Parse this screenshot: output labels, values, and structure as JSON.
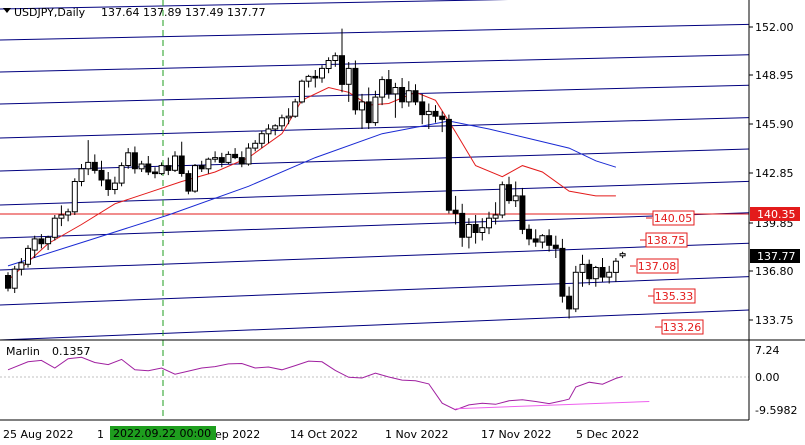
{
  "header": {
    "symbol_label": "USDJPY,Daily",
    "ohlc_values": "137.64 137.89 137.49 137.77"
  },
  "indicator": {
    "label": "Marlin",
    "value_label": "0.1357",
    "axis_ticks": [
      "7.24",
      "0.00",
      "-9.5982"
    ]
  },
  "price_axis": {
    "ticks": [
      "152.00",
      "148.95",
      "145.90",
      "142.85",
      "139.85",
      "136.80",
      "133.75"
    ],
    "current_price": "137.77"
  },
  "date_axis": {
    "labels": [
      "25 Aug 2022",
      "1",
      "ep 2022",
      "14 Oct 2022",
      "1 Nov 2022",
      "17 Nov 2022",
      "5 Dec 2022"
    ],
    "crosshair_label": "2022.09.22 00:00"
  },
  "level_labels": {
    "horizontal_line": "140.35",
    "target_1": "140.05",
    "target_2": "138.75",
    "target_3": "137.08",
    "target_4": "135.33",
    "target_5": "133.26"
  },
  "colors": {
    "background": "#ffffff",
    "bull_candle": "#ffffff",
    "bear_candle": "#000000",
    "channel_lines": "#00007f",
    "ma_fast": "#e31b1b",
    "ma_slow": "#1a2ad4",
    "horizontal_level": "#e31b1b",
    "target_labels": "#e31b1b",
    "crosshair": "#1e9e1e",
    "oscillator": "#a020a0",
    "divergence_line": "#ee60ee"
  },
  "chart_data": {
    "type": "candlestick",
    "symbol": "USDJPY",
    "timeframe": "Daily",
    "ylim": [
      132.7,
      153.1
    ],
    "x_labels": [
      "25 Aug 2022",
      "14 Oct 2022",
      "1 Nov 2022",
      "17 Nov 2022",
      "5 Dec 2022"
    ],
    "candles": [
      [
        136.4,
        136.6,
        135.4,
        135.6
      ],
      [
        135.6,
        137.0,
        135.3,
        136.8
      ],
      [
        136.8,
        137.5,
        136.4,
        137.2
      ],
      [
        137.1,
        138.3,
        136.9,
        138.1
      ],
      [
        138.0,
        138.9,
        137.5,
        138.7
      ],
      [
        138.7,
        139.0,
        138.1,
        138.4
      ],
      [
        138.4,
        138.9,
        138.0,
        138.8
      ],
      [
        138.8,
        140.2,
        138.6,
        140.0
      ],
      [
        140.0,
        140.8,
        139.5,
        140.2
      ],
      [
        140.2,
        140.6,
        139.8,
        140.4
      ],
      [
        140.4,
        142.5,
        140.2,
        142.3
      ],
      [
        142.3,
        143.4,
        142.0,
        143.1
      ],
      [
        143.1,
        144.9,
        142.7,
        143.5
      ],
      [
        143.5,
        144.0,
        142.8,
        143.0
      ],
      [
        143.0,
        143.6,
        142.0,
        142.4
      ],
      [
        142.4,
        142.9,
        141.4,
        141.8
      ],
      [
        141.8,
        142.6,
        141.5,
        142.2
      ],
      [
        142.2,
        143.5,
        142.0,
        143.3
      ],
      [
        143.3,
        144.4,
        143.1,
        144.1
      ],
      [
        144.1,
        144.5,
        142.8,
        143.1
      ],
      [
        143.1,
        143.6,
        142.9,
        143.4
      ],
      [
        143.4,
        143.9,
        142.7,
        142.9
      ],
      [
        142.9,
        143.2,
        142.5,
        142.8
      ],
      [
        142.8,
        143.5,
        142.7,
        143.3
      ],
      [
        143.3,
        143.8,
        142.7,
        143.0
      ],
      [
        143.0,
        144.2,
        142.9,
        143.9
      ],
      [
        143.9,
        144.8,
        142.6,
        142.8
      ],
      [
        142.8,
        143.0,
        141.5,
        141.7
      ],
      [
        141.7,
        143.4,
        141.6,
        143.3
      ],
      [
        143.3,
        143.6,
        142.9,
        143.1
      ],
      [
        143.1,
        143.8,
        142.8,
        143.7
      ],
      [
        143.7,
        144.2,
        143.5,
        143.8
      ],
      [
        143.8,
        144.1,
        143.2,
        143.5
      ],
      [
        143.5,
        144.2,
        143.4,
        144.0
      ],
      [
        144.0,
        144.4,
        143.7,
        143.8
      ],
      [
        143.8,
        144.2,
        143.2,
        143.4
      ],
      [
        143.4,
        144.7,
        143.3,
        144.4
      ],
      [
        144.4,
        144.9,
        144.2,
        144.7
      ],
      [
        144.7,
        145.5,
        144.4,
        145.3
      ],
      [
        145.3,
        145.9,
        144.7,
        145.6
      ],
      [
        145.6,
        145.9,
        145.2,
        145.8
      ],
      [
        145.8,
        146.5,
        145.5,
        146.3
      ],
      [
        146.3,
        146.9,
        145.9,
        146.4
      ],
      [
        146.4,
        147.5,
        146.3,
        147.3
      ],
      [
        147.3,
        148.7,
        147.2,
        148.6
      ],
      [
        148.6,
        149.0,
        148.2,
        148.9
      ],
      [
        148.9,
        149.3,
        148.2,
        148.8
      ],
      [
        148.8,
        149.6,
        148.5,
        149.4
      ],
      [
        149.4,
        150.1,
        149.1,
        149.9
      ],
      [
        149.9,
        150.4,
        149.5,
        150.2
      ],
      [
        150.2,
        151.9,
        147.9,
        148.4
      ],
      [
        148.4,
        149.8,
        147.3,
        149.4
      ],
      [
        149.4,
        149.9,
        146.5,
        146.8
      ],
      [
        146.8,
        147.8,
        145.6,
        147.3
      ],
      [
        147.3,
        148.2,
        145.6,
        146.0
      ],
      [
        146.0,
        148.0,
        145.8,
        147.6
      ],
      [
        147.6,
        148.9,
        147.1,
        148.7
      ],
      [
        148.7,
        149.3,
        147.5,
        147.8
      ],
      [
        147.8,
        148.5,
        146.3,
        148.2
      ],
      [
        148.2,
        148.8,
        146.9,
        147.3
      ],
      [
        147.3,
        148.6,
        147.0,
        148.0
      ],
      [
        148.0,
        148.4,
        147.1,
        147.3
      ],
      [
        147.3,
        147.8,
        145.9,
        146.5
      ],
      [
        146.5,
        147.2,
        145.6,
        146.7
      ],
      [
        146.7,
        147.1,
        146.0,
        146.4
      ],
      [
        146.4,
        146.7,
        145.4,
        146.2
      ],
      [
        146.2,
        146.5,
        140.3,
        140.5
      ],
      [
        140.5,
        141.4,
        139.6,
        140.3
      ],
      [
        140.3,
        140.9,
        138.2,
        138.8
      ],
      [
        138.8,
        140.0,
        138.1,
        139.6
      ],
      [
        139.6,
        140.2,
        138.4,
        139.1
      ],
      [
        139.1,
        140.0,
        138.6,
        139.4
      ],
      [
        139.4,
        140.4,
        139.0,
        140.0
      ],
      [
        140.0,
        141.0,
        139.6,
        140.2
      ],
      [
        140.2,
        142.3,
        140.0,
        142.1
      ],
      [
        142.1,
        142.6,
        140.9,
        141.1
      ],
      [
        141.1,
        142.3,
        140.7,
        141.4
      ],
      [
        141.4,
        141.9,
        139.0,
        139.3
      ],
      [
        139.3,
        139.6,
        138.3,
        138.7
      ],
      [
        138.7,
        139.3,
        138.2,
        138.5
      ],
      [
        138.5,
        139.0,
        138.1,
        138.9
      ],
      [
        138.9,
        139.3,
        137.9,
        138.3
      ],
      [
        138.3,
        138.9,
        137.5,
        138.1
      ],
      [
        138.1,
        138.7,
        134.7,
        135.1
      ],
      [
        135.1,
        135.7,
        133.7,
        134.3
      ],
      [
        134.3,
        137.0,
        134.1,
        136.6
      ],
      [
        136.6,
        137.7,
        135.7,
        137.1
      ],
      [
        137.1,
        137.4,
        135.8,
        136.2
      ],
      [
        136.2,
        137.0,
        135.7,
        136.9
      ],
      [
        136.9,
        137.5,
        136.0,
        136.3
      ],
      [
        136.3,
        137.0,
        135.9,
        136.6
      ],
      [
        136.6,
        137.5,
        136.0,
        137.3
      ],
      [
        137.64,
        137.89,
        137.49,
        137.77
      ]
    ],
    "ma_fast": [
      [
        0,
        136.1
      ],
      [
        6,
        138.4
      ],
      [
        11,
        139.6
      ],
      [
        16,
        140.9
      ],
      [
        21,
        141.6
      ],
      [
        26,
        142.3
      ],
      [
        31,
        142.9
      ],
      [
        36,
        143.8
      ],
      [
        41,
        145.3
      ],
      [
        44,
        147.4
      ],
      [
        48,
        148.2
      ],
      [
        51,
        147.9
      ],
      [
        54,
        147.1
      ],
      [
        57,
        147.2
      ],
      [
        61,
        147.9
      ],
      [
        64,
        147.4
      ],
      [
        67,
        145.4
      ],
      [
        70,
        143.3
      ],
      [
        74,
        142.6
      ],
      [
        77,
        143.3
      ],
      [
        80,
        142.9
      ],
      [
        84,
        141.7
      ],
      [
        88,
        141.4
      ],
      [
        91,
        141.4
      ]
    ],
    "ma_slow": [
      [
        0,
        137.0
      ],
      [
        12,
        138.6
      ],
      [
        24,
        140.2
      ],
      [
        36,
        142.0
      ],
      [
        46,
        143.8
      ],
      [
        56,
        145.3
      ],
      [
        66,
        146.1
      ],
      [
        72,
        145.6
      ],
      [
        78,
        145.0
      ],
      [
        84,
        144.4
      ],
      [
        88,
        143.6
      ],
      [
        91,
        143.2
      ]
    ],
    "marlin": [
      [
        0,
        2.1
      ],
      [
        3,
        4.4
      ],
      [
        5,
        4.8
      ],
      [
        7,
        2.6
      ],
      [
        9,
        5.3
      ],
      [
        11,
        5.7
      ],
      [
        13,
        4.2
      ],
      [
        15,
        3.6
      ],
      [
        17,
        5.1
      ],
      [
        19,
        2.1
      ],
      [
        21,
        1.8
      ],
      [
        23,
        2.6
      ],
      [
        25,
        0.8
      ],
      [
        27,
        1.7
      ],
      [
        29,
        2.6
      ],
      [
        31,
        3.0
      ],
      [
        33,
        3.8
      ],
      [
        35,
        3.9
      ],
      [
        37,
        2.6
      ],
      [
        39,
        2.9
      ],
      [
        41,
        2.1
      ],
      [
        43,
        3.3
      ],
      [
        45,
        4.6
      ],
      [
        47,
        4.4
      ],
      [
        49,
        1.9
      ],
      [
        51,
        -0.1
      ],
      [
        53,
        -0.3
      ],
      [
        55,
        1.1
      ],
      [
        57,
        0.0
      ],
      [
        59,
        -0.9
      ],
      [
        61,
        -1.1
      ],
      [
        63,
        -2.0
      ],
      [
        65,
        -7.6
      ],
      [
        67,
        -9.5
      ],
      [
        69,
        -8.1
      ],
      [
        71,
        -7.6
      ],
      [
        73,
        -7.9
      ],
      [
        75,
        -6.9
      ],
      [
        77,
        -6.6
      ],
      [
        79,
        -7.1
      ],
      [
        81,
        -7.7
      ],
      [
        83,
        -6.9
      ],
      [
        84,
        -6.4
      ],
      [
        85,
        -2.9
      ],
      [
        87,
        -1.5
      ],
      [
        89,
        -2.1
      ],
      [
        91,
        -0.4
      ],
      [
        92,
        0.1357
      ]
    ],
    "divergence": [
      [
        67,
        -9.2
      ],
      [
        96,
        -7.1
      ]
    ],
    "crosshair_date": "2022.09.22 00:00"
  }
}
